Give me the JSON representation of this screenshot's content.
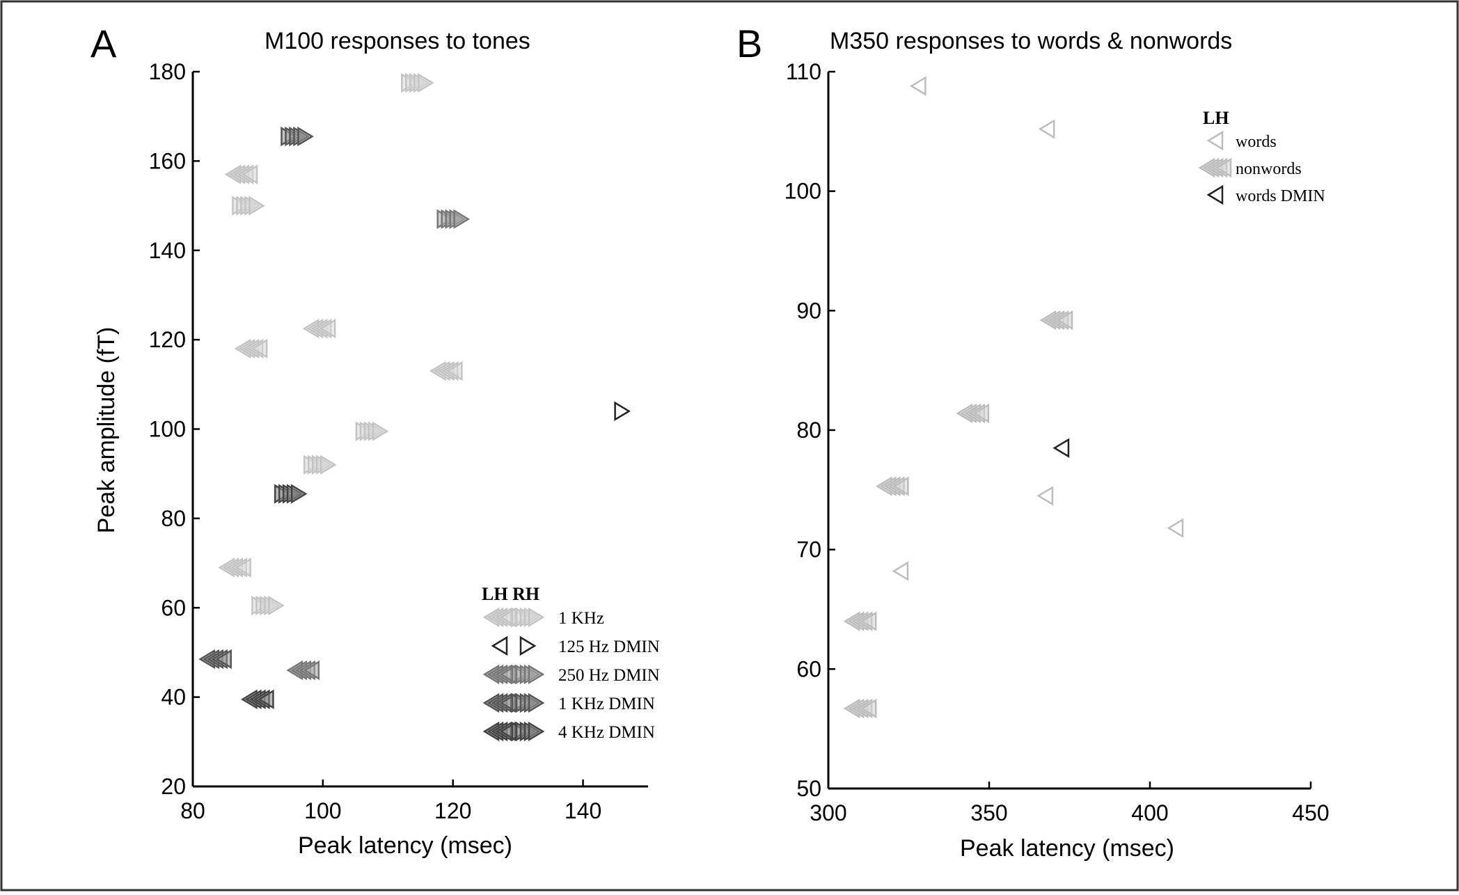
{
  "panels": [
    {
      "letter": "A",
      "title": "M100 responses to tones",
      "xlabel": "Peak latency (msec)",
      "ylabel": "Peak amplitude (fT)",
      "legend_header": "LH RH"
    },
    {
      "letter": "B",
      "title": "M350 responses to words & nonwords",
      "xlabel": "Peak latency (msec)",
      "ylabel": "",
      "legend_header": "LH"
    }
  ],
  "chart_data": [
    {
      "type": "scatter",
      "title": "M100 responses to tones",
      "xlabel": "Peak latency (msec)",
      "ylabel": "Peak amplitude (fT)",
      "xlim": [
        80,
        150
      ],
      "ylim": [
        20,
        180
      ],
      "xticks": [
        80,
        100,
        120,
        140
      ],
      "yticks": [
        20,
        40,
        60,
        80,
        100,
        120,
        140,
        160,
        180
      ],
      "grid": false,
      "legend_position": "bottom-right",
      "legend_header": "LH RH",
      "series": [
        {
          "name": "1 KHz",
          "hemisphere": "RH",
          "color": "#c4c4c4",
          "marker": "triangle-right-cluster",
          "points": [
            [
              114.5,
              177.5
            ],
            [
              88.5,
              150
            ],
            [
              99.5,
              92
            ],
            [
              107.5,
              99.5
            ],
            [
              91.5,
              60.5
            ]
          ]
        },
        {
          "name": "1 KHz",
          "hemisphere": "LH",
          "color": "#c4c4c4",
          "marker": "triangle-left-cluster",
          "points": [
            [
              87.5,
              157
            ],
            [
              99.5,
              122.5
            ],
            [
              89,
              118
            ],
            [
              119,
              113
            ],
            [
              86.5,
              69
            ]
          ]
        },
        {
          "name": "125 Hz DMIN",
          "hemisphere": "RH",
          "color": "#222222",
          "marker": "triangle-right-open",
          "points": [
            [
              146,
              104
            ]
          ]
        },
        {
          "name": "250 Hz DMIN",
          "hemisphere": "RH",
          "color": "#777777",
          "marker": "triangle-right-cluster",
          "points": [
            [
              120,
              147
            ]
          ]
        },
        {
          "name": "250 Hz DMIN",
          "hemisphere": "LH",
          "color": "#777777",
          "marker": "triangle-left-cluster",
          "points": [
            [
              97,
              46
            ]
          ]
        },
        {
          "name": "1 KHz DMIN",
          "hemisphere": "RH",
          "color": "#555555",
          "marker": "triangle-right-cluster",
          "points": [
            [
              96,
              165.5
            ]
          ]
        },
        {
          "name": "1 KHz DMIN",
          "hemisphere": "LH",
          "color": "#555555",
          "marker": "triangle-left-cluster",
          "points": [
            [
              83.5,
              48.5
            ]
          ]
        },
        {
          "name": "4 KHz DMIN",
          "hemisphere": "RH",
          "color": "#444444",
          "marker": "triangle-right-cluster",
          "points": [
            [
              95,
              85.5
            ]
          ]
        },
        {
          "name": "4 KHz DMIN",
          "hemisphere": "LH",
          "color": "#444444",
          "marker": "triangle-left-cluster",
          "points": [
            [
              90,
              39.5
            ]
          ]
        }
      ],
      "legend": [
        {
          "label": "1 KHz",
          "color": "#c4c4c4",
          "lh": "triangle-left-cluster",
          "rh": "triangle-right-cluster"
        },
        {
          "label": "125 Hz DMIN",
          "color": "#222222",
          "lh": "triangle-left-open",
          "rh": "triangle-right-open"
        },
        {
          "label": "250 Hz DMIN",
          "color": "#777777",
          "lh": "triangle-left-cluster",
          "rh": "triangle-right-cluster"
        },
        {
          "label": "1 KHz DMIN",
          "color": "#555555",
          "lh": "triangle-left-cluster",
          "rh": "triangle-right-cluster"
        },
        {
          "label": "4 KHz DMIN",
          "color": "#444444",
          "lh": "triangle-left-cluster",
          "rh": "triangle-right-cluster"
        }
      ]
    },
    {
      "type": "scatter",
      "title": "M350 responses to words & nonwords",
      "xlabel": "Peak latency (msec)",
      "ylabel": "",
      "xlim": [
        300,
        450
      ],
      "ylim": [
        50,
        110
      ],
      "xticks": [
        300,
        350,
        400,
        450
      ],
      "yticks": [
        50,
        60,
        70,
        80,
        90,
        100,
        110
      ],
      "grid": false,
      "legend_position": "top-right",
      "legend_header": "LH",
      "series": [
        {
          "name": "words",
          "color": "#bdbdbd",
          "marker": "triangle-left-open",
          "points": [
            [
              328,
              108.8
            ],
            [
              368,
              105.2
            ],
            [
              322.5,
              68.2
            ],
            [
              367.5,
              74.5
            ],
            [
              408,
              71.8
            ]
          ]
        },
        {
          "name": "nonwords",
          "color": "#bdbdbd",
          "marker": "triangle-left-cluster",
          "points": [
            [
              371,
              89.2
            ],
            [
              345,
              81.4
            ],
            [
              320,
              75.3
            ],
            [
              310,
              64
            ],
            [
              310,
              56.7
            ]
          ]
        },
        {
          "name": "words DMIN",
          "color": "#222222",
          "marker": "triangle-left-open",
          "points": [
            [
              372.5,
              78.5
            ]
          ]
        }
      ],
      "legend": [
        {
          "label": "words",
          "color": "#bdbdbd",
          "marker": "triangle-left-open"
        },
        {
          "label": "nonwords",
          "color": "#bdbdbd",
          "marker": "triangle-left-cluster"
        },
        {
          "label": "words DMIN",
          "color": "#222222",
          "marker": "triangle-left-open"
        }
      ]
    }
  ]
}
